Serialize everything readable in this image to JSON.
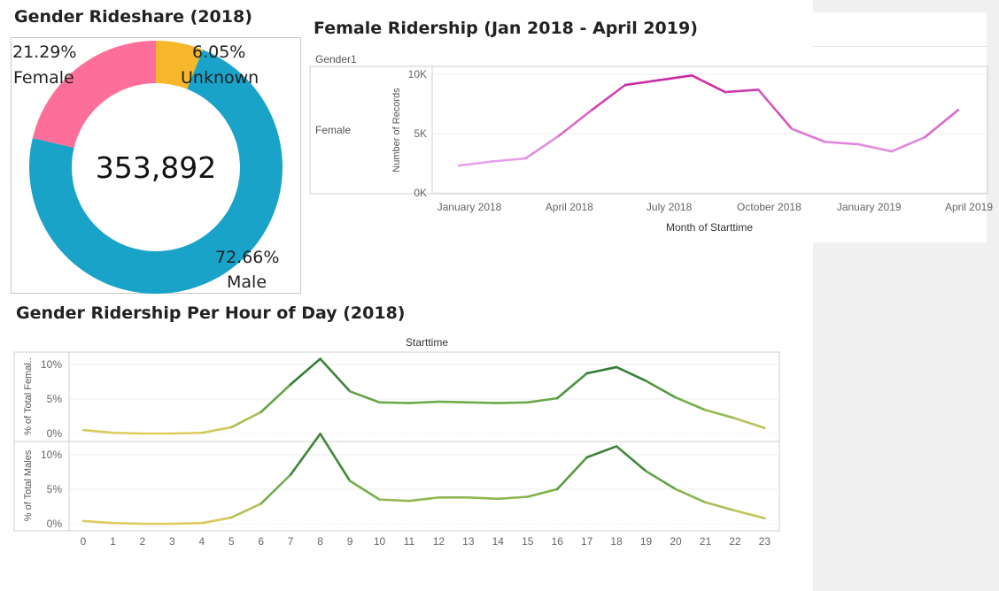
{
  "chart_data": [
    {
      "type": "pie",
      "title": "Gender Rideshare (2018)",
      "donut": true,
      "center_label": "353,892",
      "slices": [
        {
          "label": "Unknown",
          "value": 6.05,
          "display": "6.05%",
          "color": "#f6b72a"
        },
        {
          "label": "Male",
          "value": 72.66,
          "display": "72.66%",
          "color": "#1aa3c8"
        },
        {
          "label": "Female",
          "value": 21.29,
          "display": "21.29%",
          "color": "#fe6e9a"
        }
      ]
    },
    {
      "type": "line",
      "title": "Female Ridership (Jan 2018 - April 2019)",
      "header": "Gender1",
      "row_label": "Female",
      "xlabel": "Month of Starttime",
      "ylabel": "Number of Records",
      "yticks": [
        "0K",
        "5K",
        "10K"
      ],
      "ylim": [
        0,
        10000
      ],
      "xticks": [
        {
          "index": 0,
          "label": "January 2018"
        },
        {
          "index": 3,
          "label": "April 2018"
        },
        {
          "index": 6,
          "label": "July 2018"
        },
        {
          "index": 9,
          "label": "October 2018"
        },
        {
          "index": 12,
          "label": "January 2019"
        },
        {
          "index": 15,
          "label": "April 2019"
        }
      ],
      "x": [
        "2018-01",
        "2018-02",
        "2018-03",
        "2018-04",
        "2018-05",
        "2018-06",
        "2018-07",
        "2018-08",
        "2018-09",
        "2018-10",
        "2018-11",
        "2018-12",
        "2019-01",
        "2019-02",
        "2019-03",
        "2019-04"
      ],
      "values": [
        2300,
        2650,
        2900,
        4800,
        7000,
        9100,
        9500,
        9900,
        8500,
        8700,
        5400,
        4300,
        4100,
        3500,
        4700,
        7000
      ],
      "color_low": "#e7a6ec",
      "color_high": "#c9259e"
    },
    {
      "type": "line",
      "title": "Gender Ridership Per Hour of Day (2018)",
      "header": "Starttime",
      "x": [
        0,
        1,
        2,
        3,
        4,
        5,
        6,
        7,
        8,
        9,
        10,
        11,
        12,
        13,
        14,
        15,
        16,
        17,
        18,
        19,
        20,
        21,
        22,
        23
      ],
      "yticks": [
        "0%",
        "5%",
        "10%"
      ],
      "ylim": [
        0,
        11
      ],
      "color_low": "#e0cc60",
      "color_mid": "#6fac4b",
      "color_high": "#1e6b2d",
      "series": [
        {
          "name": "% of Total Femal..",
          "values": [
            0.5,
            0.1,
            0.0,
            0.0,
            0.1,
            0.9,
            3.1,
            7.1,
            10.8,
            6.1,
            4.5,
            4.4,
            4.6,
            4.5,
            4.4,
            4.5,
            5.1,
            8.7,
            9.6,
            7.6,
            5.2,
            3.4,
            2.2,
            0.8
          ]
        },
        {
          "name": "% of Total Males",
          "values": [
            0.4,
            0.1,
            0.0,
            0.0,
            0.1,
            0.9,
            2.9,
            7.1,
            13.0,
            6.2,
            3.5,
            3.3,
            3.8,
            3.8,
            3.6,
            3.9,
            5.0,
            9.6,
            11.2,
            7.6,
            5.0,
            3.1,
            1.9,
            0.8
          ]
        }
      ]
    }
  ]
}
